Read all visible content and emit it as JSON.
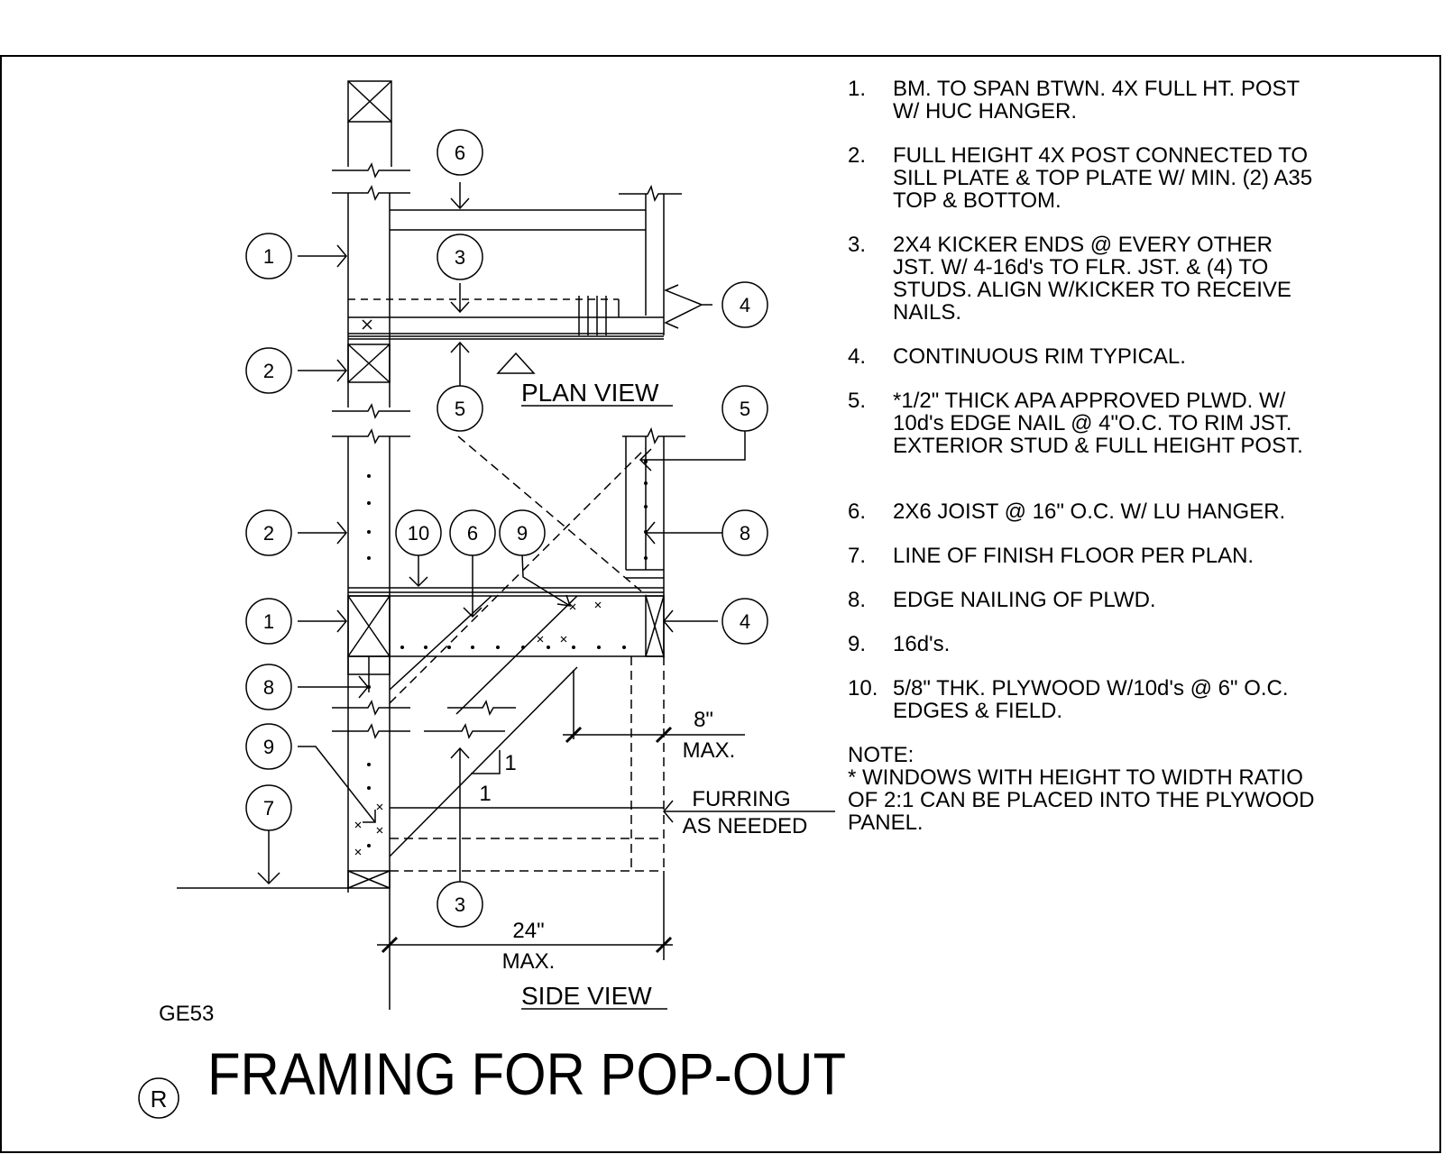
{
  "title": "FRAMING FOR POP-OUT",
  "sheet_code": "GE53",
  "revision_mark": "R",
  "views": {
    "plan": "PLAN VIEW",
    "side": "SIDE VIEW"
  },
  "dimensions": {
    "top_value": "8\"",
    "top_max": "MAX.",
    "bottom_value": "24\"",
    "bottom_max": "MAX.",
    "slope_rise": "1",
    "slope_run": "1",
    "furring_1": "FURRING",
    "furring_2": "AS NEEDED"
  },
  "callouts": {
    "plan": [
      "6",
      "1",
      "3",
      "4",
      "2",
      "5"
    ],
    "side": [
      "5",
      "2",
      "10",
      "6",
      "9",
      "8",
      "1",
      "4",
      "8",
      "9",
      "7",
      "3"
    ]
  },
  "notes": [
    {
      "num": "1.",
      "text": "BM. TO SPAN BTWN. 4X FULL HT. POST W/ HUC HANGER."
    },
    {
      "num": "2.",
      "text": "FULL HEIGHT 4X POST CONNECTED TO SILL PLATE & TOP PLATE W/ MIN. (2) A35 TOP & BOTTOM."
    },
    {
      "num": "3.",
      "text": "2X4 KICKER ENDS @ EVERY OTHER JST. W/ 4-16d's TO FLR. JST. & (4) TO STUDS. ALIGN W/KICKER TO RECEIVE NAILS."
    },
    {
      "num": "4.",
      "text": "CONTINUOUS RIM TYPICAL."
    },
    {
      "num": "5.",
      "text": "*1/2\" THICK APA APPROVED PLWD.  W/ 10d's EDGE NAIL @ 4\"O.C. TO RIM JST. EXTERIOR STUD & FULL HEIGHT POST."
    },
    {
      "num": "6.",
      "text": "2X6 JOIST @ 16\" O.C. W/ LU HANGER."
    },
    {
      "num": "7.",
      "text": "LINE OF FINISH FLOOR PER PLAN."
    },
    {
      "num": "8.",
      "text": "EDGE NAILING OF PLWD."
    },
    {
      "num": "9.",
      "text": "16d's."
    },
    {
      "num": "10.",
      "text": "5/8\" THK. PLYWOOD W/10d's @ 6\" O.C. EDGES & FIELD."
    }
  ],
  "note_block": {
    "heading": "NOTE:",
    "text": "* WINDOWS WITH HEIGHT TO WIDTH RATIO OF 2:1 CAN BE PLACED INTO THE PLYWOOD PANEL."
  }
}
